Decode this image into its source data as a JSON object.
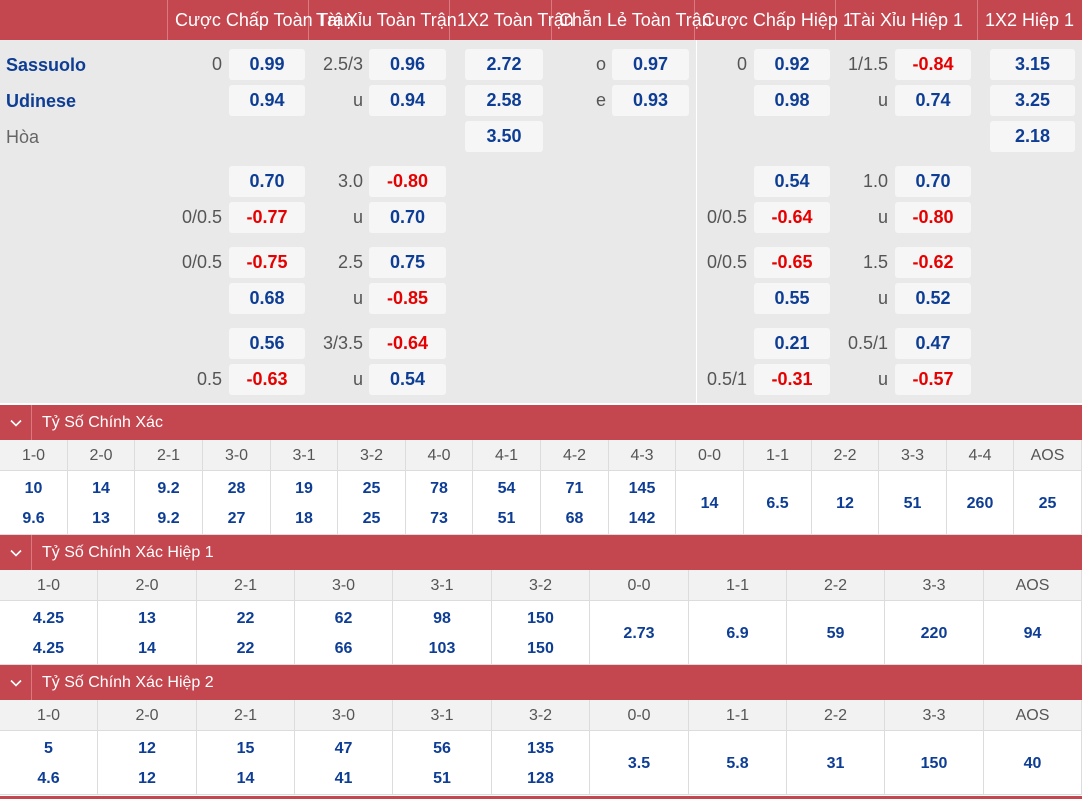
{
  "header": {
    "cols": [
      "Cược Chấp Toàn Trận",
      "Tài Xỉu Toàn Trận",
      "1X2 Toàn Trận",
      "Chẵn Lẻ Toàn Trận",
      "Cược Chấp Hiệp 1",
      "Tài Xỉu Hiệp 1",
      "1X2 Hiệp 1"
    ]
  },
  "teams": {
    "home": "Sassuolo",
    "away": "Udinese",
    "draw": "Hòa"
  },
  "main_lines": {
    "hcap_ft": {
      "home_line": "0",
      "home_odds": "0.99",
      "away_odds": "0.94"
    },
    "ou_ft": {
      "line": "2.5/3",
      "over_odds": "0.96",
      "under_label": "u",
      "under_odds": "0.94"
    },
    "x12_ft": {
      "home": "2.72",
      "away": "2.58",
      "draw": "3.50"
    },
    "oe_ft": {
      "odd_label": "o",
      "odd": "0.97",
      "even_label": "e",
      "even": "0.93"
    },
    "hcap_h1": {
      "home_line": "0",
      "home_odds": "0.92",
      "away_odds": "0.98"
    },
    "ou_h1": {
      "line": "1/1.5",
      "over_odds": "-0.84",
      "under_label": "u",
      "under_odds": "0.74"
    },
    "x12_h1": {
      "home": "3.15",
      "away": "3.25",
      "draw": "2.18"
    }
  },
  "extra_lines": [
    {
      "hcap_ft": {
        "home_line": "",
        "home_odds": "0.70",
        "away_line": "0/0.5",
        "away_odds": "-0.77"
      },
      "ou_ft": {
        "line": "3.0",
        "over_odds": "-0.80",
        "under_label": "u",
        "under_odds": "0.70"
      },
      "hcap_h1": {
        "home_line": "",
        "home_odds": "0.54",
        "away_line": "0/0.5",
        "away_odds": "-0.64"
      },
      "ou_h1": {
        "line": "1.0",
        "over_odds": "0.70",
        "under_label": "u",
        "under_odds": "-0.80"
      }
    },
    {
      "hcap_ft": {
        "home_line": "0/0.5",
        "home_odds": "-0.75",
        "away_line": "",
        "away_odds": "0.68"
      },
      "ou_ft": {
        "line": "2.5",
        "over_odds": "0.75",
        "under_label": "u",
        "under_odds": "-0.85"
      },
      "hcap_h1": {
        "home_line": "0/0.5",
        "home_odds": "-0.65",
        "away_line": "",
        "away_odds": "0.55"
      },
      "ou_h1": {
        "line": "1.5",
        "over_odds": "-0.62",
        "under_label": "u",
        "under_odds": "0.52"
      }
    },
    {
      "hcap_ft": {
        "home_line": "",
        "home_odds": "0.56",
        "away_line": "0.5",
        "away_odds": "-0.63"
      },
      "ou_ft": {
        "line": "3/3.5",
        "over_odds": "-0.64",
        "under_label": "u",
        "under_odds": "0.54"
      },
      "hcap_h1": {
        "home_line": "",
        "home_odds": "0.21",
        "away_line": "0.5/1",
        "away_odds": "-0.31"
      },
      "ou_h1": {
        "line": "0.5/1",
        "over_odds": "0.47",
        "under_label": "u",
        "under_odds": "-0.57"
      }
    }
  ],
  "sections": [
    {
      "title": "Tỷ Số Chính Xác",
      "cols": [
        {
          "score": "1-0",
          "home": "10",
          "away": "9.6"
        },
        {
          "score": "2-0",
          "home": "14",
          "away": "13"
        },
        {
          "score": "2-1",
          "home": "9.2",
          "away": "9.2"
        },
        {
          "score": "3-0",
          "home": "28",
          "away": "27"
        },
        {
          "score": "3-1",
          "home": "19",
          "away": "18"
        },
        {
          "score": "3-2",
          "home": "25",
          "away": "25"
        },
        {
          "score": "4-0",
          "home": "78",
          "away": "73"
        },
        {
          "score": "4-1",
          "home": "54",
          "away": "51"
        },
        {
          "score": "4-2",
          "home": "71",
          "away": "68"
        },
        {
          "score": "4-3",
          "home": "145",
          "away": "142"
        },
        {
          "score": "0-0",
          "single": "14"
        },
        {
          "score": "1-1",
          "single": "6.5"
        },
        {
          "score": "2-2",
          "single": "12"
        },
        {
          "score": "3-3",
          "single": "51"
        },
        {
          "score": "4-4",
          "single": "260"
        },
        {
          "score": "AOS",
          "single": "25"
        }
      ]
    },
    {
      "title": "Tỷ Số Chính Xác Hiệp 1",
      "cols": [
        {
          "score": "1-0",
          "home": "4.25",
          "away": "4.25"
        },
        {
          "score": "2-0",
          "home": "13",
          "away": "14"
        },
        {
          "score": "2-1",
          "home": "22",
          "away": "22"
        },
        {
          "score": "3-0",
          "home": "62",
          "away": "66"
        },
        {
          "score": "3-1",
          "home": "98",
          "away": "103"
        },
        {
          "score": "3-2",
          "home": "150",
          "away": "150"
        },
        {
          "score": "0-0",
          "single": "2.73"
        },
        {
          "score": "1-1",
          "single": "6.9"
        },
        {
          "score": "2-2",
          "single": "59"
        },
        {
          "score": "3-3",
          "single": "220"
        },
        {
          "score": "AOS",
          "single": "94"
        }
      ]
    },
    {
      "title": "Tỷ Số Chính Xác Hiệp 2",
      "cols": [
        {
          "score": "1-0",
          "home": "5",
          "away": "4.6"
        },
        {
          "score": "2-0",
          "home": "12",
          "away": "12"
        },
        {
          "score": "2-1",
          "home": "15",
          "away": "14"
        },
        {
          "score": "3-0",
          "home": "47",
          "away": "41"
        },
        {
          "score": "3-1",
          "home": "56",
          "away": "51"
        },
        {
          "score": "3-2",
          "home": "135",
          "away": "128"
        },
        {
          "score": "0-0",
          "single": "3.5"
        },
        {
          "score": "1-1",
          "single": "5.8"
        },
        {
          "score": "2-2",
          "single": "31"
        },
        {
          "score": "3-3",
          "single": "150"
        },
        {
          "score": "AOS",
          "single": "40"
        }
      ]
    }
  ],
  "colors": {
    "header_bg": "#c4464f",
    "odds_blue": "#0d3d94",
    "odds_red": "#e60000",
    "panel_bg": "#e9e9e9"
  }
}
